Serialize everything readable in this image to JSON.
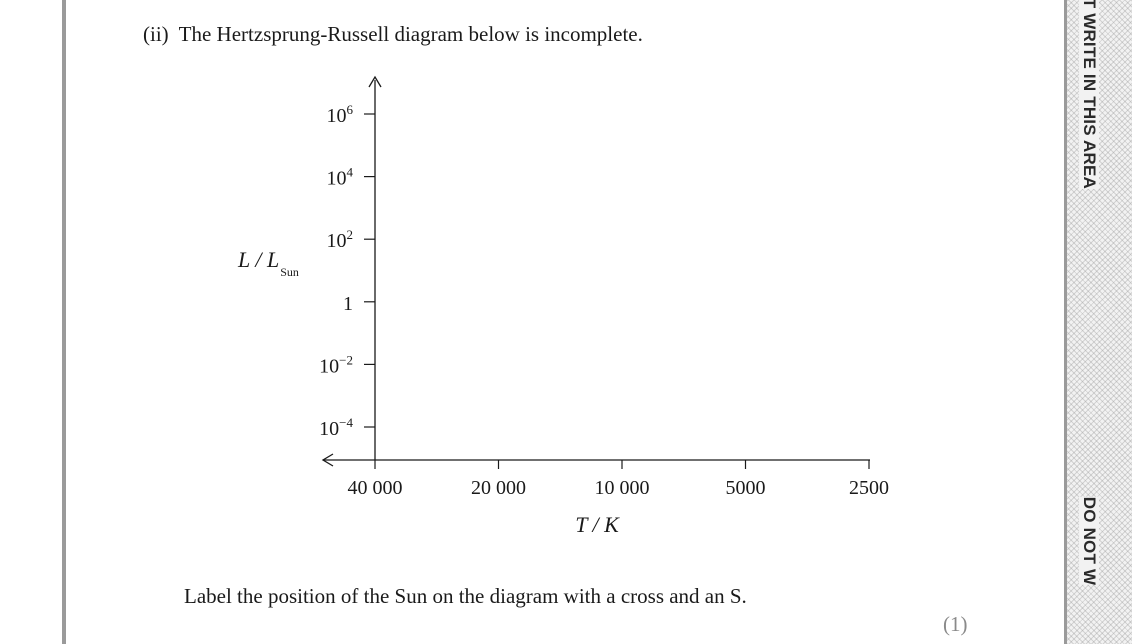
{
  "question": {
    "number": "(ii)",
    "text": "The Hertzsprung-Russell diagram below is incomplete."
  },
  "chart_data": {
    "type": "scatter",
    "title": "",
    "series": [],
    "y_axis": {
      "label_main": "L / L",
      "label_sub": "Sun",
      "scale": "log",
      "ticks": [
        {
          "value": 1000000,
          "base": "10",
          "exp": "6"
        },
        {
          "value": 10000,
          "base": "10",
          "exp": "4"
        },
        {
          "value": 100,
          "base": "10",
          "exp": "2"
        },
        {
          "value": 1,
          "base": "1",
          "exp": ""
        },
        {
          "value": 0.01,
          "base": "10",
          "exp": "−2"
        },
        {
          "value": 0.0001,
          "base": "10",
          "exp": "−4"
        }
      ]
    },
    "x_axis": {
      "label": "T / K",
      "scale": "log",
      "direction": "decreasing",
      "ticks": [
        {
          "value": 40000,
          "label": "40 000"
        },
        {
          "value": 20000,
          "label": "20 000"
        },
        {
          "value": 10000,
          "label": "10 000"
        },
        {
          "value": 5000,
          "label": "5000"
        },
        {
          "value": 2500,
          "label": "2500"
        }
      ]
    }
  },
  "instruction": "Label the position of the Sun on the diagram with a cross and an S.",
  "marks": "(1)",
  "margin": {
    "text": "DO NOT WRITE IN THIS AREA",
    "text_cut": "DO NOT W"
  }
}
